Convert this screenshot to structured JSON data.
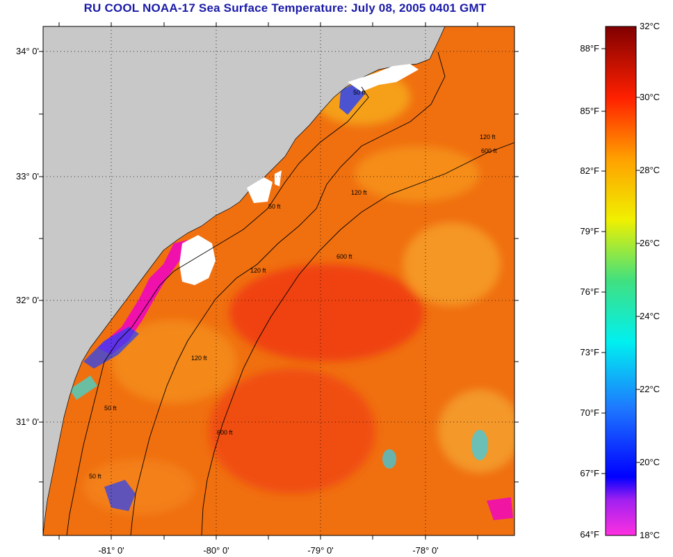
{
  "title": "RU COOL  NOAA-17  Sea Surface Temperature:  July 08, 2005 0401 GMT",
  "latitude_labels": [
    "34° 0'",
    "33° 0'",
    "32° 0'",
    "31° 0'"
  ],
  "longitude_labels": [
    "-81° 0'",
    "-80° 0'",
    "-79° 0'",
    "-78° 0'"
  ],
  "colorbar": {
    "fahrenheit_labels": [
      "88°F",
      "85°F",
      "82°F",
      "79°F",
      "76°F",
      "73°F",
      "70°F",
      "67°F",
      "64°F"
    ],
    "celsius_labels": [
      "32°C",
      "30°C",
      "28°C",
      "26°C",
      "24°C",
      "22°C",
      "20°C",
      "18°C"
    ]
  },
  "contour_labels": {
    "c50_a": "50 ft",
    "c50_b": "50 ft",
    "c50_c": "50 ft",
    "c50_d": "50 ft",
    "c120_a": "120 ft",
    "c120_b": "120 ft",
    "c120_c": "120 ft",
    "c120_d": "120 ft",
    "c600_a": "600 ft",
    "c600_b": "600 ft",
    "c600_c": "600 ft"
  },
  "colors": {
    "land": "#c8c8c8",
    "cloud": "#ffffff",
    "sea_base": "#f07010",
    "title": "#1a1aa8"
  }
}
